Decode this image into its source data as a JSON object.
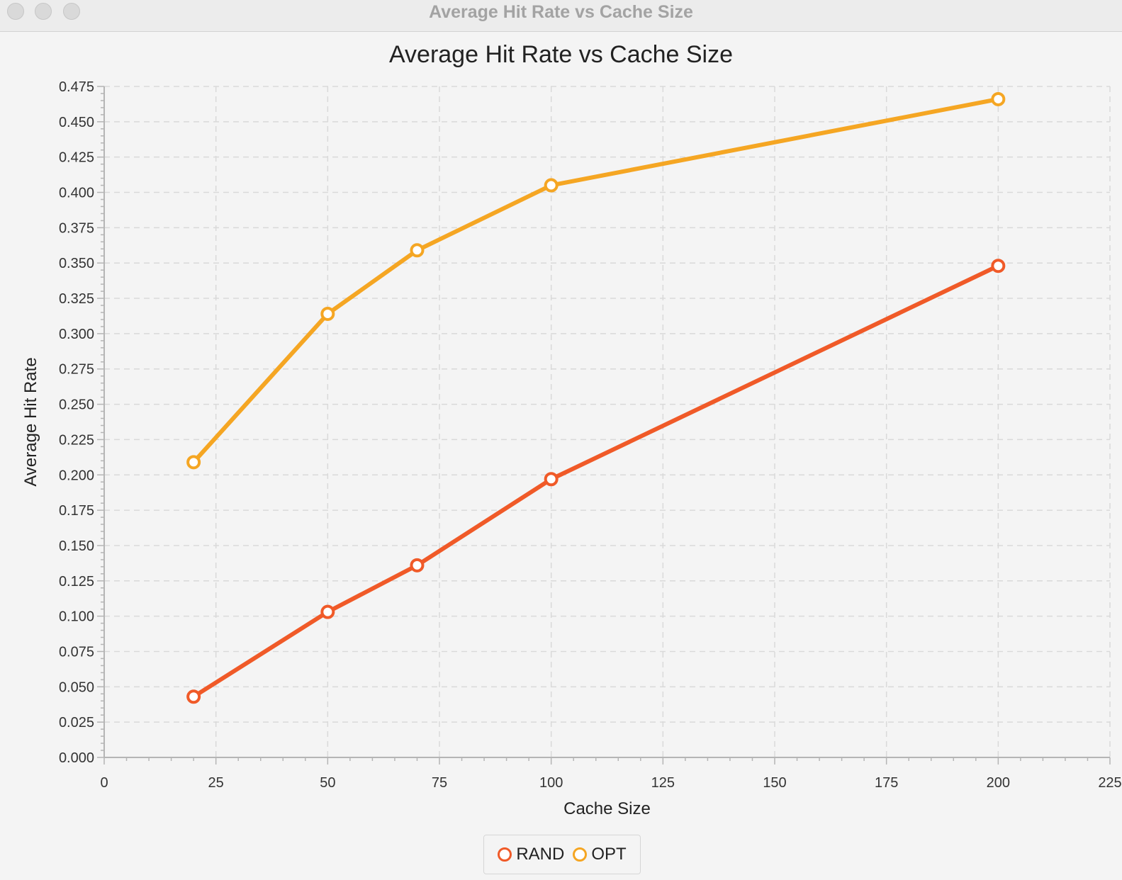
{
  "window": {
    "title": "Average Hit Rate vs Cache Size",
    "controls": [
      "close",
      "minimize",
      "zoom"
    ]
  },
  "chart_data": {
    "type": "line",
    "title": "Average Hit Rate vs Cache Size",
    "xlabel": "Cache Size",
    "ylabel": "Average Hit Rate",
    "xlim": [
      0,
      225
    ],
    "ylim": [
      0,
      0.475
    ],
    "x_ticks": [
      "0",
      "25",
      "50",
      "75",
      "100",
      "125",
      "150",
      "175",
      "200",
      "225"
    ],
    "y_ticks": [
      "0.000",
      "0.025",
      "0.050",
      "0.075",
      "0.100",
      "0.125",
      "0.150",
      "0.175",
      "0.200",
      "0.225",
      "0.250",
      "0.275",
      "0.300",
      "0.325",
      "0.350",
      "0.375",
      "0.400",
      "0.425",
      "0.450",
      "0.475"
    ],
    "grid": true,
    "legend_position": "bottom-center",
    "series": [
      {
        "name": "RAND",
        "color": "#f05a28",
        "x": [
          20,
          50,
          70,
          100,
          200
        ],
        "y": [
          0.043,
          0.103,
          0.136,
          0.197,
          0.348
        ]
      },
      {
        "name": "OPT",
        "color": "#f5a623",
        "x": [
          20,
          50,
          70,
          100,
          200
        ],
        "y": [
          0.209,
          0.314,
          0.359,
          0.405,
          0.466
        ]
      }
    ]
  }
}
